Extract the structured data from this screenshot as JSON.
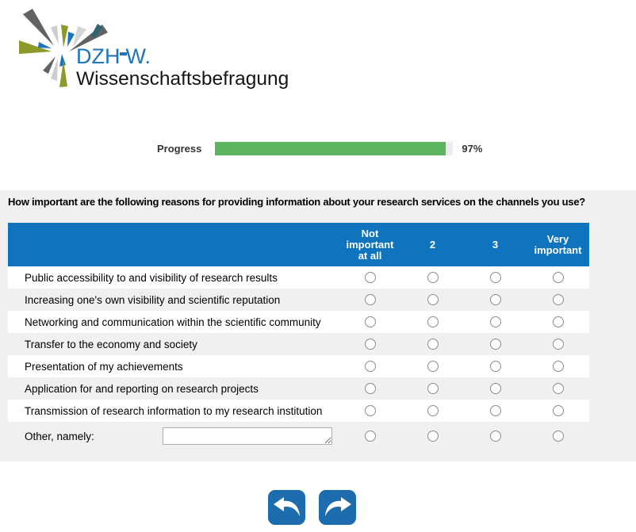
{
  "logo": {
    "brand_prefix": "DZH",
    "brand_suffix": "W.",
    "subtitle": "Wissenschaftsbefragung"
  },
  "progress": {
    "label": "Progress",
    "percent": 97,
    "percent_label": "97%"
  },
  "question": {
    "title": "How important are the following reasons for providing information about your research services on the channels you use?",
    "columns": [
      "Not important at all",
      "2",
      "3",
      "Very important"
    ],
    "rows": [
      "Public accessibility to and visibility of research results",
      "Increasing one's own visibility and scientific reputation",
      "Networking and communication within the scientific community",
      "Transfer to the economy and society",
      "Presentation of my achievements",
      "Application for and reporting on research projects",
      "Transmission of research information to my research institution"
    ],
    "other_row": {
      "label": "Other, namely:",
      "input_value": ""
    }
  },
  "nav": {
    "back_label": "back",
    "forward_label": "forward"
  },
  "colors": {
    "header_blue": "#0f73bd",
    "button_blue": "#1c6cae",
    "progress_green": "#5ab55e",
    "section_bg": "#f0f0f1",
    "logo_blue": "#1c75bc",
    "logo_olive": "#8d9928",
    "logo_gray": "#616264",
    "logo_teal": "#2f6470"
  }
}
